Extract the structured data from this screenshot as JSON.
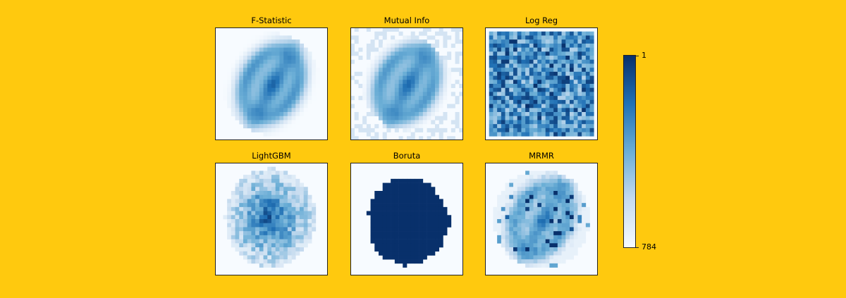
{
  "chart_data": {
    "type": "heatmap",
    "grid": [
      28,
      28
    ],
    "colormap": [
      "#F7FBFF",
      "#C6DBEF",
      "#6BAED6",
      "#2171B5",
      "#08306B"
    ],
    "panels": [
      {
        "title": "F-Statistic",
        "pattern": "fstat"
      },
      {
        "title": "Mutual Info",
        "pattern": "mutual"
      },
      {
        "title": "Log Reg",
        "pattern": "logreg"
      },
      {
        "title": "LightGBM",
        "pattern": "lightgbm"
      },
      {
        "title": "Boruta",
        "pattern": "boruta"
      },
      {
        "title": "MRMR",
        "pattern": "mrmr"
      }
    ],
    "colorbar": {
      "min_label": "1",
      "max_label": "784",
      "range": [
        1,
        784
      ],
      "orientation": "vertical",
      "top_color": "#08306B",
      "bottom_color": "#F7FBFF"
    }
  }
}
